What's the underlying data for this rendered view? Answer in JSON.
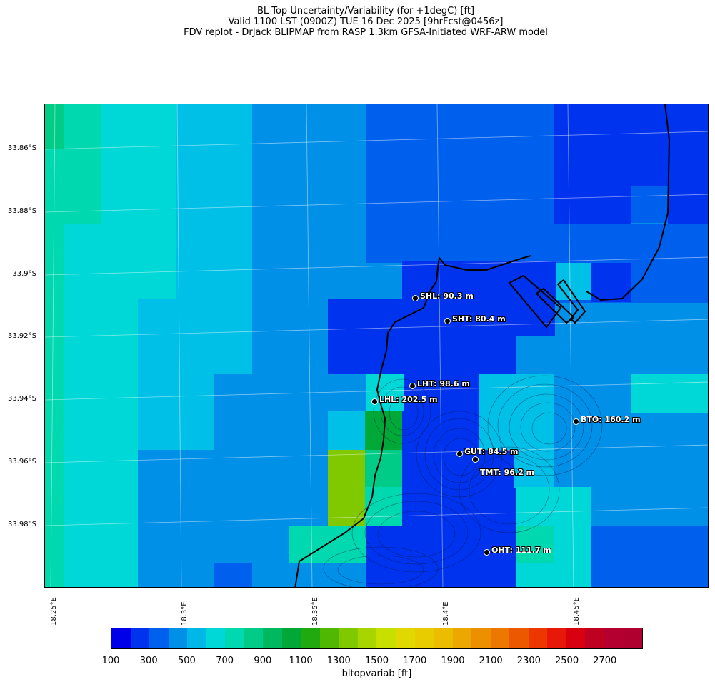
{
  "title": {
    "line1": "BL Top Uncertainty/Variability (for +1degC) [ft]",
    "line2": "Valid 1100 LST (0900Z) TUE 16 Dec 2025 [9hrFcst@0456z]",
    "line3": "FDV replot - DrJack BLIPMAP from RASP 1.3km GFSA-Initiated WRF-ARW model"
  },
  "axes": {
    "lat_labels": [
      "33.86°S",
      "33.88°S",
      "33.9°S",
      "33.92°S",
      "33.94°S",
      "33.96°S",
      "33.98°S"
    ],
    "lon_labels": [
      "18.25°E",
      "18.3°E",
      "18.35°E",
      "18.4°E",
      "18.45°E"
    ]
  },
  "stations": [
    {
      "id": "SHL",
      "label": "SHL: 90.3 m"
    },
    {
      "id": "SHT",
      "label": "SHT: 80.4 m"
    },
    {
      "id": "LHT",
      "label": "LHT: 98.6 m"
    },
    {
      "id": "LHL",
      "label": "LHL: 202.5 m"
    },
    {
      "id": "BTO",
      "label": "BTO: 160.2 m"
    },
    {
      "id": "GUT",
      "label": "GUT: 84.5 m"
    },
    {
      "id": "TMT",
      "label": "TMT: 96.2 m"
    },
    {
      "id": "OHT",
      "label": "OHT: 111.7 m"
    }
  ],
  "colorbar": {
    "label": "bltopvariab [ft]",
    "ticks": [
      "100",
      "300",
      "500",
      "700",
      "900",
      "1100",
      "1300",
      "1500",
      "1700",
      "1900",
      "2100",
      "2300",
      "2500",
      "2700"
    ],
    "colors": [
      "#0000e8",
      "#0033ee",
      "#0060ee",
      "#0090e8",
      "#00b8e8",
      "#00d8d8",
      "#00d8b0",
      "#00cc88",
      "#00b860",
      "#00a838",
      "#20aa10",
      "#50b800",
      "#80c800",
      "#a8d400",
      "#c8e000",
      "#e0d800",
      "#e8cc00",
      "#ecbc00",
      "#eca800",
      "#ec9000",
      "#ec7800",
      "#ec5800",
      "#ec3800",
      "#e81808",
      "#d80010",
      "#c00020",
      "#b40030",
      "#b00030"
    ]
  }
}
